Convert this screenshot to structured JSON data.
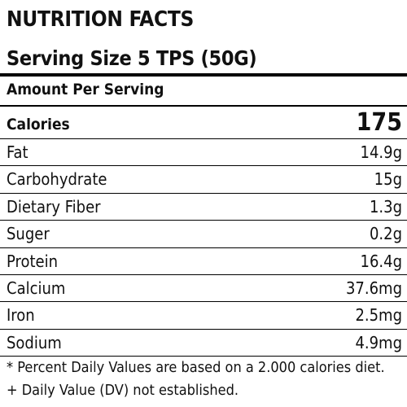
{
  "label": {
    "title": "NUTRITION FACTS",
    "serving_size": "Serving Size 5 TPS (50G)",
    "amount_per_serving": "Amount Per Serving",
    "calories_label": "Calories",
    "calories_value": "175",
    "nutrients": [
      {
        "name": "Fat",
        "amount": "14.9g"
      },
      {
        "name": "Carbohydrate",
        "amount": "15g"
      },
      {
        "name": "Dietary Fiber",
        "amount": "1.3g"
      },
      {
        "name": "Suger",
        "amount": "0.2g"
      },
      {
        "name": "Protein",
        "amount": "16.4g"
      },
      {
        "name": "Calcium",
        "amount": "37.6mg"
      },
      {
        "name": "Iron",
        "amount": "2.5mg"
      },
      {
        "name": "Sodium",
        "amount": "4.9mg"
      }
    ],
    "footnotes": [
      "* Percent Daily Values are based on a 2.000 calories diet.",
      "+ Daily Value (DV) not established."
    ]
  }
}
